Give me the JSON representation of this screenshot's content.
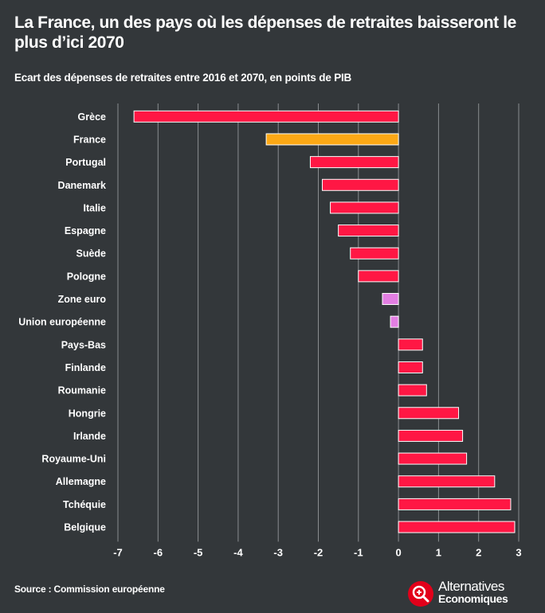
{
  "header": {
    "title": "La France, un des pays où les dépenses de retraites baisseront le plus d’ici 2070",
    "subtitle": "Ecart des dépenses de retraites entre 2016 et 2070, en points de PIB"
  },
  "footer": {
    "source": "Source : Commission européenne",
    "logo_line1": "Alternatives",
    "logo_line2": "Economiques"
  },
  "colors": {
    "background": "#33373a",
    "bar_default": "#ff1744",
    "bar_highlight": "#fca815",
    "bar_aggregate": "#e27ee2",
    "grid": "#8a8d90",
    "logo_red": "#e2001a"
  },
  "chart_data": {
    "type": "bar",
    "orientation": "horizontal",
    "title": "La France, un des pays où les dépenses de retraites baisseront le plus d’ici 2070",
    "subtitle": "Ecart des dépenses de retraites entre 2016 et 2070, en points de PIB",
    "categories": [
      "Grèce",
      "France",
      "Portugal",
      "Danemark",
      "Italie",
      "Espagne",
      "Suède",
      "Pologne",
      "Zone euro",
      "Union européenne",
      "Pays-Bas",
      "Finlande",
      "Roumanie",
      "Hongrie",
      "Irlande",
      "Royaume-Uni",
      "Allemagne",
      "Tchéquie",
      "Belgique"
    ],
    "values": [
      -6.6,
      -3.3,
      -2.2,
      -1.9,
      -1.7,
      -1.5,
      -1.2,
      -1.0,
      -0.4,
      -0.2,
      0.6,
      0.6,
      0.7,
      1.5,
      1.6,
      1.7,
      2.4,
      2.8,
      2.9
    ],
    "bar_colors": [
      "#ff1744",
      "#fca815",
      "#ff1744",
      "#ff1744",
      "#ff1744",
      "#ff1744",
      "#ff1744",
      "#ff1744",
      "#e27ee2",
      "#e27ee2",
      "#ff1744",
      "#ff1744",
      "#ff1744",
      "#ff1744",
      "#ff1744",
      "#ff1744",
      "#ff1744",
      "#ff1744",
      "#ff1744"
    ],
    "xlim": [
      -7,
      3
    ],
    "xticks": [
      -7,
      -6,
      -5,
      -4,
      -3,
      -2,
      -1,
      0,
      1,
      2,
      3
    ],
    "xlabel": "",
    "ylabel": "",
    "grid": "vertical"
  }
}
